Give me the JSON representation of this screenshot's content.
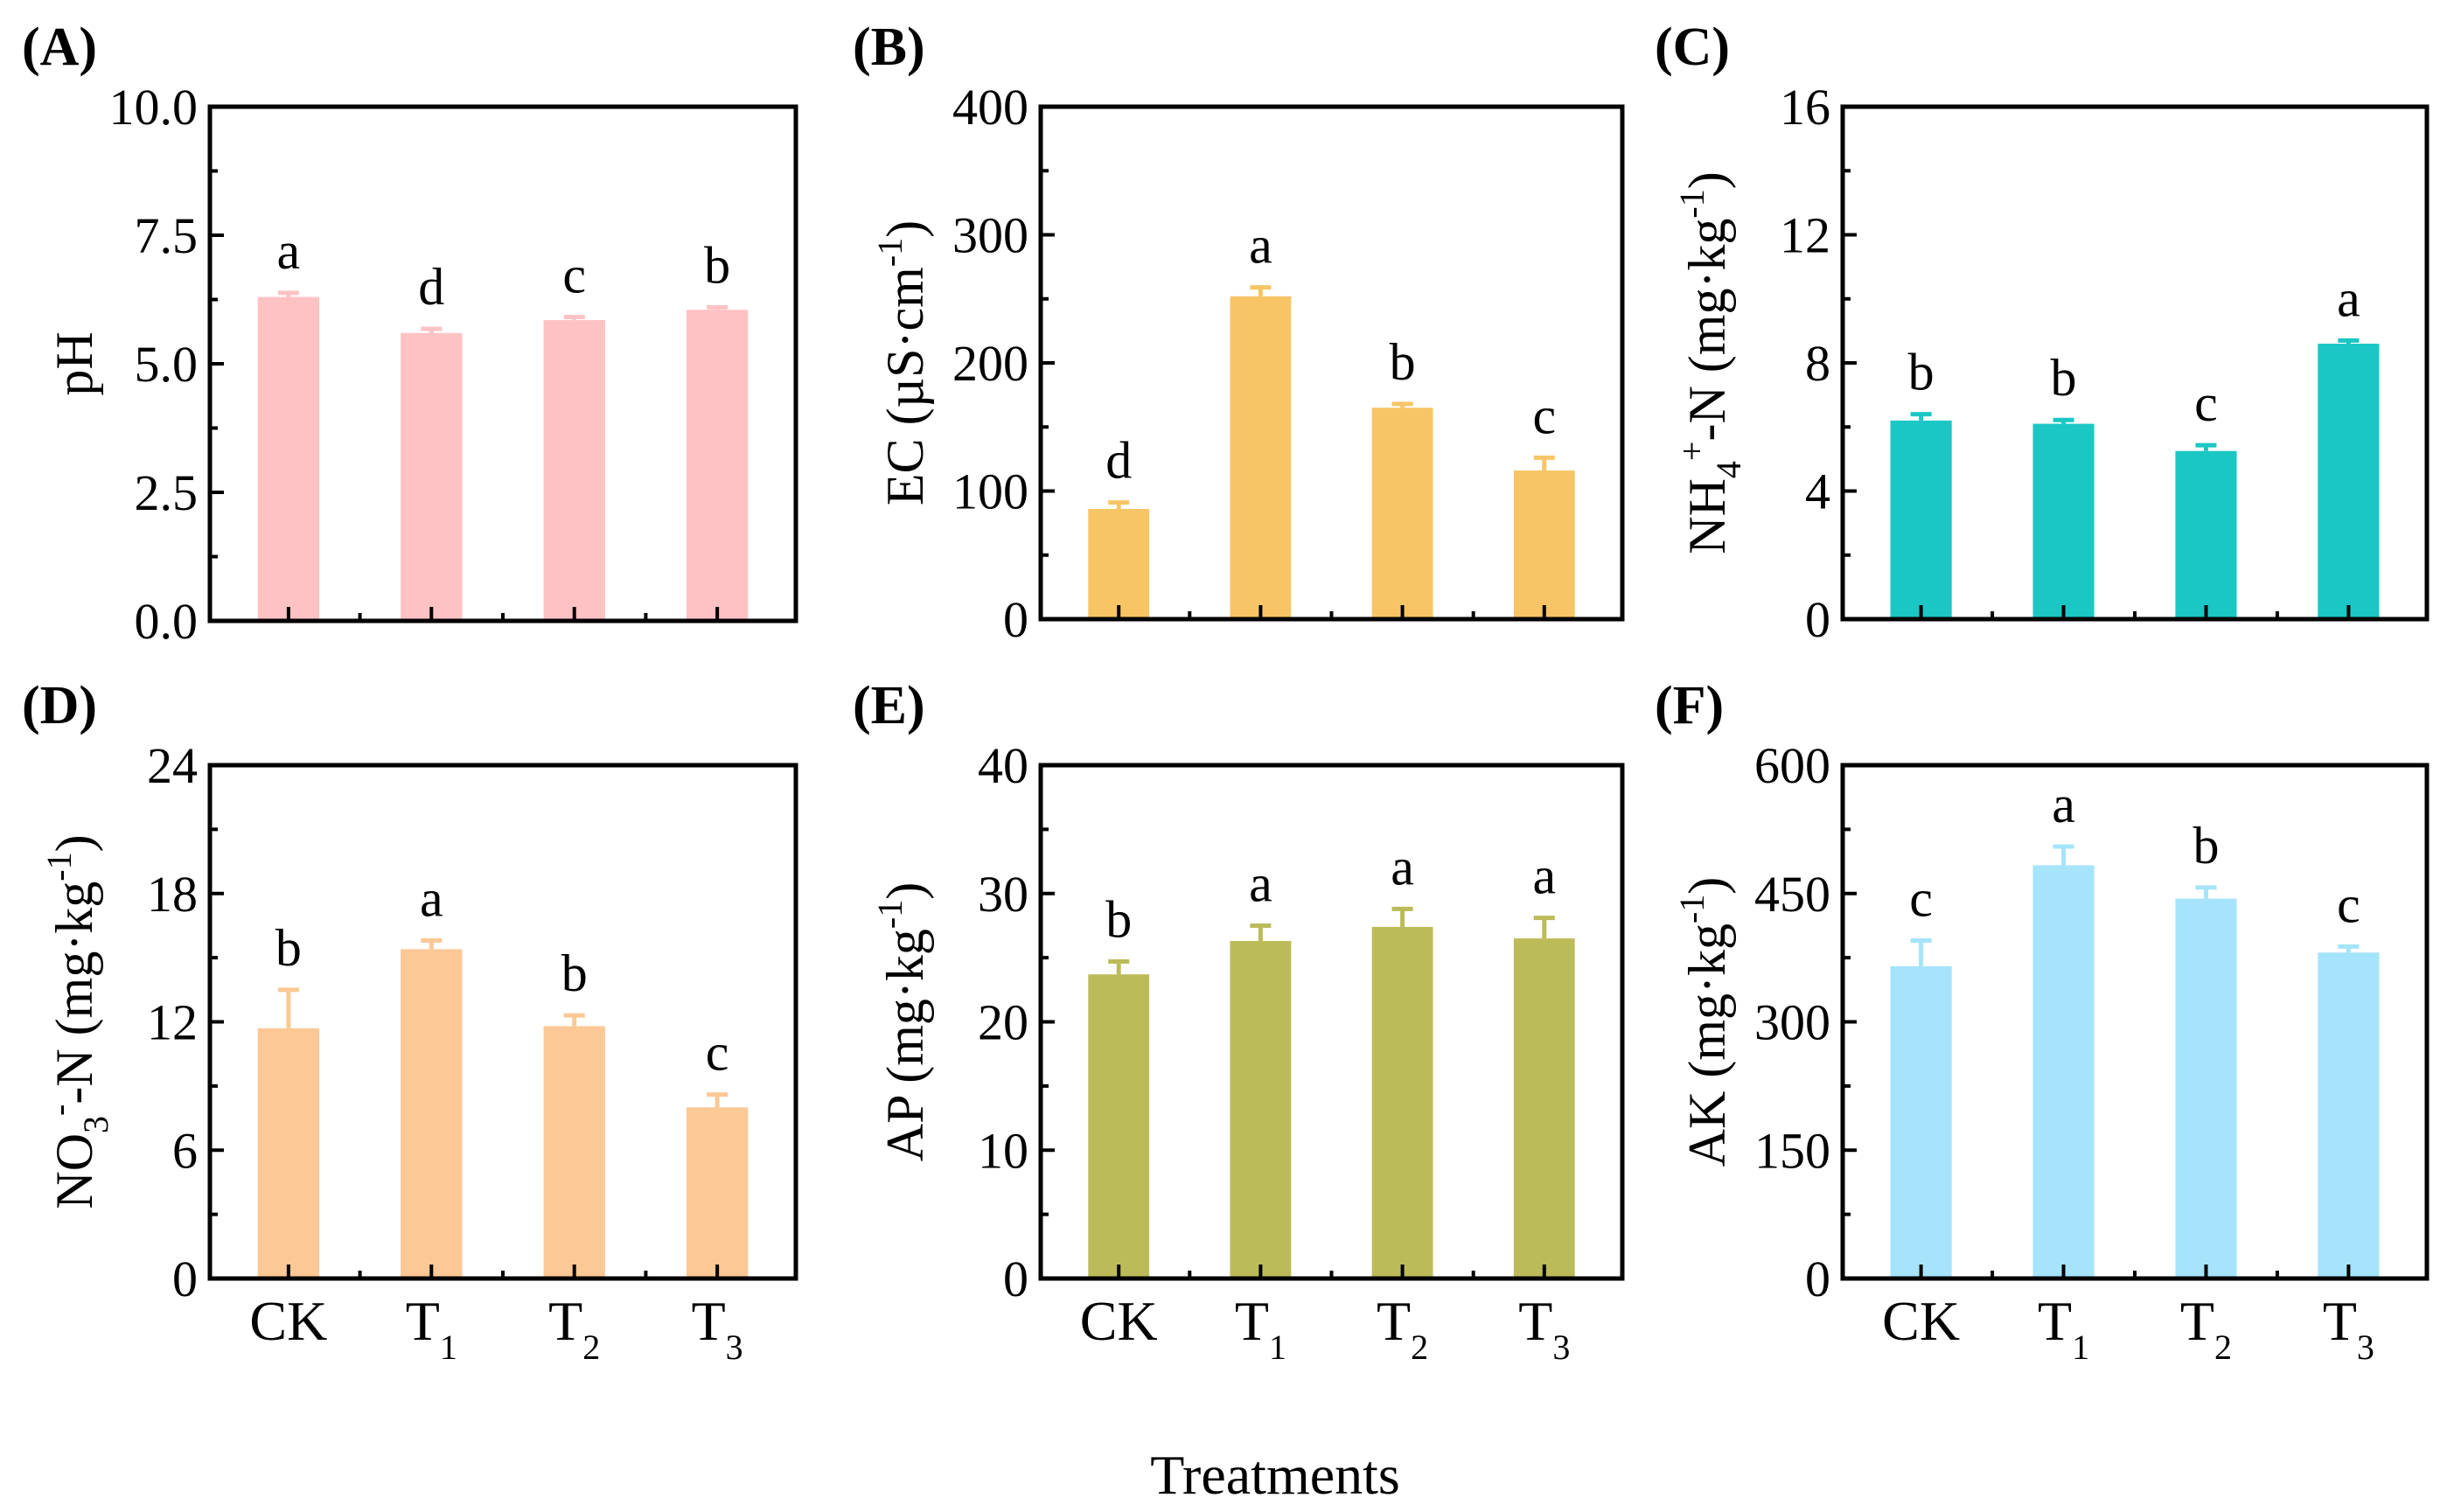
{
  "x_title": "Treatments",
  "chart_data": [
    {
      "panel": "(A)",
      "type": "bar",
      "ylabel": [
        {
          "t": "pH"
        }
      ],
      "categories": [
        "CK",
        "T1",
        "T2",
        "T3"
      ],
      "values": [
        6.3,
        5.6,
        5.85,
        6.05
      ],
      "errors": [
        0.08,
        0.08,
        0.06,
        0.05
      ],
      "letters": [
        "a",
        "d",
        "c",
        "b"
      ],
      "ylim": [
        0,
        10
      ],
      "ticks": [
        "0.0",
        "2.5",
        "5.0",
        "7.5",
        "10.0"
      ],
      "color": "#ffc2c4",
      "show_xlabels": false
    },
    {
      "panel": "(B)",
      "type": "bar",
      "ylabel": [
        {
          "t": "EC (µS·cm"
        },
        {
          "t": "-1",
          "s": "sup"
        },
        {
          "t": ")"
        }
      ],
      "categories": [
        "CK",
        "T1",
        "T2",
        "T3"
      ],
      "values": [
        86,
        252,
        165,
        116
      ],
      "errors": [
        5,
        7,
        3,
        10
      ],
      "letters": [
        "d",
        "a",
        "b",
        "c"
      ],
      "ylim": [
        0,
        400
      ],
      "ticks": [
        "0",
        "100",
        "200",
        "300",
        "400"
      ],
      "color": "#f7c565",
      "show_xlabels": false
    },
    {
      "panel": "(C)",
      "type": "bar",
      "ylabel": [
        {
          "t": "NH"
        },
        {
          "t": "4",
          "s": "sub"
        },
        {
          "t": "+",
          "s": "sup"
        },
        {
          "t": "-N (mg·kg"
        },
        {
          "t": "-1",
          "s": "sup"
        },
        {
          "t": ")"
        }
      ],
      "categories": [
        "CK",
        "T1",
        "T2",
        "T3"
      ],
      "values": [
        6.2,
        6.1,
        5.25,
        8.6
      ],
      "errors": [
        0.2,
        0.12,
        0.18,
        0.1
      ],
      "letters": [
        "b",
        "b",
        "c",
        "a"
      ],
      "ylim": [
        0,
        16
      ],
      "ticks": [
        "0",
        "4",
        "8",
        "12",
        "16"
      ],
      "color": "#1bc7c4",
      "show_xlabels": false
    },
    {
      "panel": "(D)",
      "type": "bar",
      "ylabel": [
        {
          "t": "NO"
        },
        {
          "t": "3",
          "s": "sub"
        },
        {
          "t": "-",
          "s": "sup"
        },
        {
          "t": "-N (mg·kg"
        },
        {
          "t": "-1",
          "s": "sup"
        },
        {
          "t": ")"
        }
      ],
      "categories": [
        "CK",
        "T1",
        "T2",
        "T3"
      ],
      "values": [
        11.7,
        15.4,
        11.8,
        8.0
      ],
      "errors": [
        1.8,
        0.4,
        0.5,
        0.6
      ],
      "letters": [
        "b",
        "a",
        "b",
        "c"
      ],
      "ylim": [
        0,
        24
      ],
      "ticks": [
        "0",
        "6",
        "12",
        "18",
        "24"
      ],
      "color": "#fcc895",
      "show_xlabels": true
    },
    {
      "panel": "(E)",
      "type": "bar",
      "ylabel": [
        {
          "t": "AP (mg·kg"
        },
        {
          "t": "-1",
          "s": "sup"
        },
        {
          "t": ")"
        }
      ],
      "categories": [
        "CK",
        "T1",
        "T2",
        "T3"
      ],
      "values": [
        23.7,
        26.3,
        27.4,
        26.5
      ],
      "errors": [
        1.0,
        1.2,
        1.4,
        1.6
      ],
      "letters": [
        "b",
        "a",
        "a",
        "a"
      ],
      "ylim": [
        0,
        40
      ],
      "ticks": [
        "0",
        "10",
        "20",
        "30",
        "40"
      ],
      "color": "#bbbb5a",
      "show_xlabels": true
    },
    {
      "panel": "(F)",
      "type": "bar",
      "ylabel": [
        {
          "t": "AK (mg·kg"
        },
        {
          "t": "-1",
          "s": "sup"
        },
        {
          "t": ")"
        }
      ],
      "categories": [
        "CK",
        "T1",
        "T2",
        "T3"
      ],
      "values": [
        365,
        483,
        444,
        381
      ],
      "errors": [
        30,
        22,
        13,
        7
      ],
      "letters": [
        "c",
        "a",
        "b",
        "c"
      ],
      "ylim": [
        0,
        600
      ],
      "ticks": [
        "0",
        "150",
        "300",
        "450",
        "600"
      ],
      "color": "#a5e4fb",
      "show_xlabels": true
    }
  ]
}
